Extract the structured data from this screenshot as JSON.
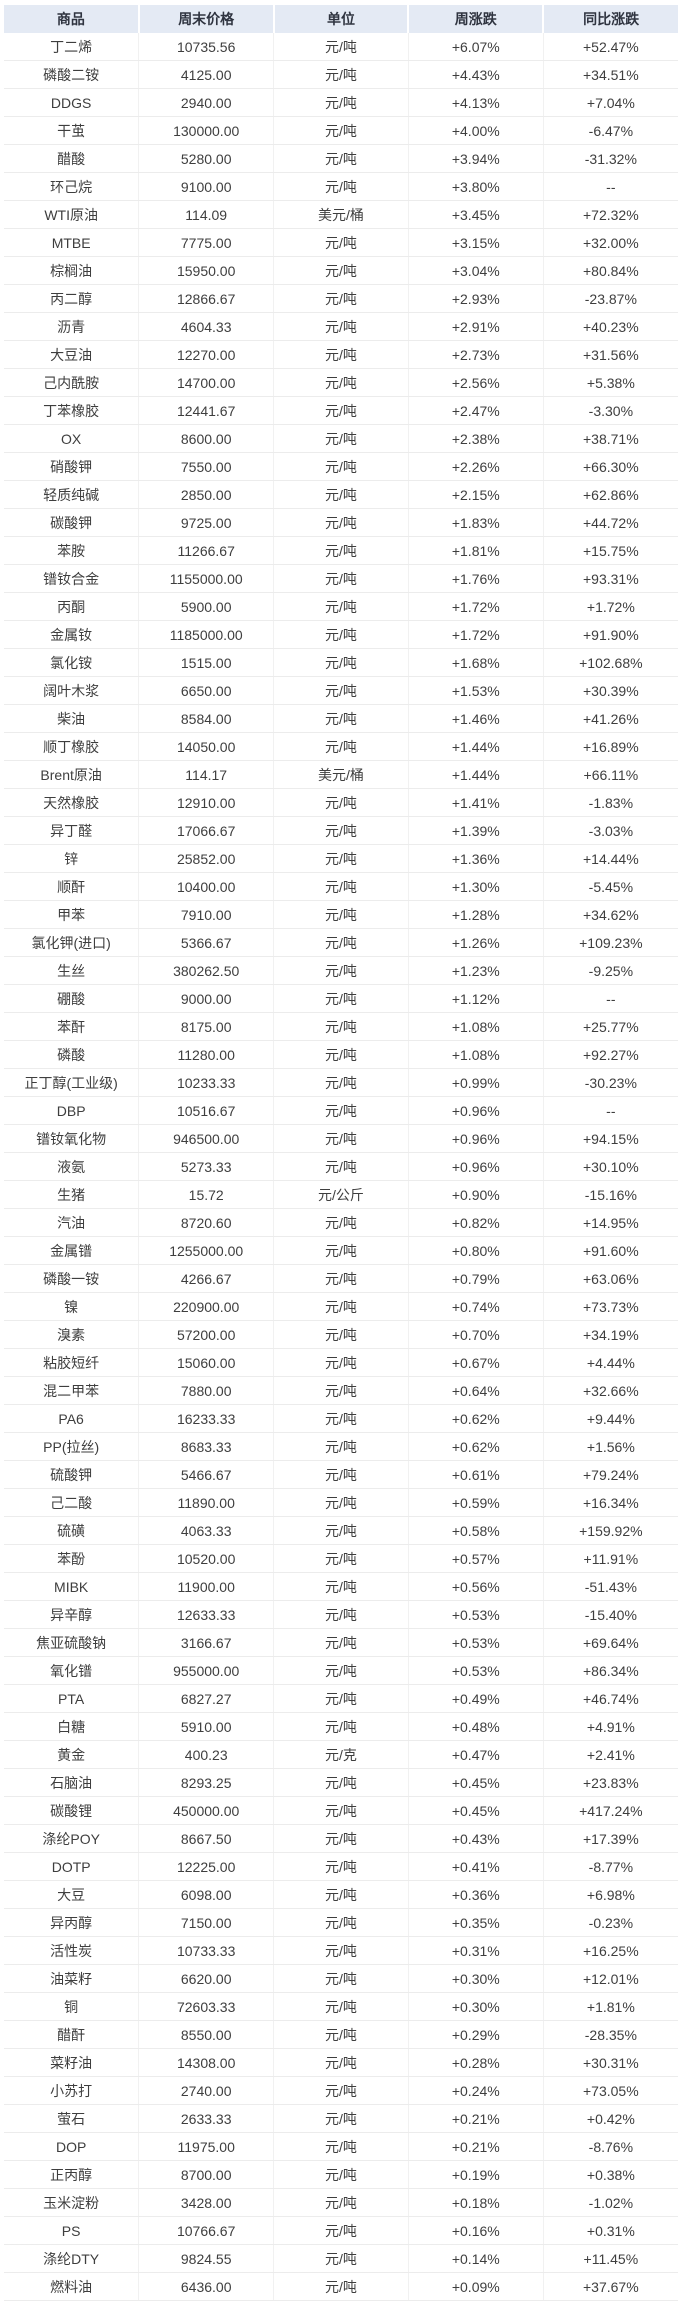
{
  "colors": {
    "header_bg": "#e4eaf4",
    "header_text": "#2f3440",
    "body_text": "#3e3e3e",
    "up": "#ff0000",
    "down": "#0b8a4b"
  },
  "chart_data": {
    "type": "table",
    "columns": [
      "商品",
      "周末价格",
      "单位",
      "周涨跌",
      "同比涨跌"
    ],
    "rows": [
      [
        "丁二烯",
        "10735.56",
        "元/吨",
        "+6.07%",
        "+52.47%"
      ],
      [
        "磷酸二铵",
        "4125.00",
        "元/吨",
        "+4.43%",
        "+34.51%"
      ],
      [
        "DDGS",
        "2940.00",
        "元/吨",
        "+4.13%",
        "+7.04%"
      ],
      [
        "干茧",
        "130000.00",
        "元/吨",
        "+4.00%",
        "-6.47%"
      ],
      [
        "醋酸",
        "5280.00",
        "元/吨",
        "+3.94%",
        "-31.32%"
      ],
      [
        "环己烷",
        "9100.00",
        "元/吨",
        "+3.80%",
        "--"
      ],
      [
        "WTI原油",
        "114.09",
        "美元/桶",
        "+3.45%",
        "+72.32%"
      ],
      [
        "MTBE",
        "7775.00",
        "元/吨",
        "+3.15%",
        "+32.00%"
      ],
      [
        "棕榈油",
        "15950.00",
        "元/吨",
        "+3.04%",
        "+80.84%"
      ],
      [
        "丙二醇",
        "12866.67",
        "元/吨",
        "+2.93%",
        "-23.87%"
      ],
      [
        "沥青",
        "4604.33",
        "元/吨",
        "+2.91%",
        "+40.23%"
      ],
      [
        "大豆油",
        "12270.00",
        "元/吨",
        "+2.73%",
        "+31.56%"
      ],
      [
        "己内酰胺",
        "14700.00",
        "元/吨",
        "+2.56%",
        "+5.38%"
      ],
      [
        "丁苯橡胶",
        "12441.67",
        "元/吨",
        "+2.47%",
        "-3.30%"
      ],
      [
        "OX",
        "8600.00",
        "元/吨",
        "+2.38%",
        "+38.71%"
      ],
      [
        "硝酸钾",
        "7550.00",
        "元/吨",
        "+2.26%",
        "+66.30%"
      ],
      [
        "轻质纯碱",
        "2850.00",
        "元/吨",
        "+2.15%",
        "+62.86%"
      ],
      [
        "碳酸钾",
        "9725.00",
        "元/吨",
        "+1.83%",
        "+44.72%"
      ],
      [
        "苯胺",
        "11266.67",
        "元/吨",
        "+1.81%",
        "+15.75%"
      ],
      [
        "镨钕合金",
        "1155000.00",
        "元/吨",
        "+1.76%",
        "+93.31%"
      ],
      [
        "丙酮",
        "5900.00",
        "元/吨",
        "+1.72%",
        "+1.72%"
      ],
      [
        "金属钕",
        "1185000.00",
        "元/吨",
        "+1.72%",
        "+91.90%"
      ],
      [
        "氯化铵",
        "1515.00",
        "元/吨",
        "+1.68%",
        "+102.68%"
      ],
      [
        "阔叶木浆",
        "6650.00",
        "元/吨",
        "+1.53%",
        "+30.39%"
      ],
      [
        "柴油",
        "8584.00",
        "元/吨",
        "+1.46%",
        "+41.26%"
      ],
      [
        "顺丁橡胶",
        "14050.00",
        "元/吨",
        "+1.44%",
        "+16.89%"
      ],
      [
        "Brent原油",
        "114.17",
        "美元/桶",
        "+1.44%",
        "+66.11%"
      ],
      [
        "天然橡胶",
        "12910.00",
        "元/吨",
        "+1.41%",
        "-1.83%"
      ],
      [
        "异丁醛",
        "17066.67",
        "元/吨",
        "+1.39%",
        "-3.03%"
      ],
      [
        "锌",
        "25852.00",
        "元/吨",
        "+1.36%",
        "+14.44%"
      ],
      [
        "顺酐",
        "10400.00",
        "元/吨",
        "+1.30%",
        "-5.45%"
      ],
      [
        "甲苯",
        "7910.00",
        "元/吨",
        "+1.28%",
        "+34.62%"
      ],
      [
        "氯化钾(进口)",
        "5366.67",
        "元/吨",
        "+1.26%",
        "+109.23%"
      ],
      [
        "生丝",
        "380262.50",
        "元/吨",
        "+1.23%",
        "-9.25%"
      ],
      [
        "硼酸",
        "9000.00",
        "元/吨",
        "+1.12%",
        "--"
      ],
      [
        "苯酐",
        "8175.00",
        "元/吨",
        "+1.08%",
        "+25.77%"
      ],
      [
        "磷酸",
        "11280.00",
        "元/吨",
        "+1.08%",
        "+92.27%"
      ],
      [
        "正丁醇(工业级)",
        "10233.33",
        "元/吨",
        "+0.99%",
        "-30.23%"
      ],
      [
        "DBP",
        "10516.67",
        "元/吨",
        "+0.96%",
        "--"
      ],
      [
        "镨钕氧化物",
        "946500.00",
        "元/吨",
        "+0.96%",
        "+94.15%"
      ],
      [
        "液氨",
        "5273.33",
        "元/吨",
        "+0.96%",
        "+30.10%"
      ],
      [
        "生猪",
        "15.72",
        "元/公斤",
        "+0.90%",
        "-15.16%"
      ],
      [
        "汽油",
        "8720.60",
        "元/吨",
        "+0.82%",
        "+14.95%"
      ],
      [
        "金属镨",
        "1255000.00",
        "元/吨",
        "+0.80%",
        "+91.60%"
      ],
      [
        "磷酸一铵",
        "4266.67",
        "元/吨",
        "+0.79%",
        "+63.06%"
      ],
      [
        "镍",
        "220900.00",
        "元/吨",
        "+0.74%",
        "+73.73%"
      ],
      [
        "溴素",
        "57200.00",
        "元/吨",
        "+0.70%",
        "+34.19%"
      ],
      [
        "粘胶短纤",
        "15060.00",
        "元/吨",
        "+0.67%",
        "+4.44%"
      ],
      [
        "混二甲苯",
        "7880.00",
        "元/吨",
        "+0.64%",
        "+32.66%"
      ],
      [
        "PA6",
        "16233.33",
        "元/吨",
        "+0.62%",
        "+9.44%"
      ],
      [
        "PP(拉丝)",
        "8683.33",
        "元/吨",
        "+0.62%",
        "+1.56%"
      ],
      [
        "硫酸钾",
        "5466.67",
        "元/吨",
        "+0.61%",
        "+79.24%"
      ],
      [
        "己二酸",
        "11890.00",
        "元/吨",
        "+0.59%",
        "+16.34%"
      ],
      [
        "硫磺",
        "4063.33",
        "元/吨",
        "+0.58%",
        "+159.92%"
      ],
      [
        "苯酚",
        "10520.00",
        "元/吨",
        "+0.57%",
        "+11.91%"
      ],
      [
        "MIBK",
        "11900.00",
        "元/吨",
        "+0.56%",
        "-51.43%"
      ],
      [
        "异辛醇",
        "12633.33",
        "元/吨",
        "+0.53%",
        "-15.40%"
      ],
      [
        "焦亚硫酸钠",
        "3166.67",
        "元/吨",
        "+0.53%",
        "+69.64%"
      ],
      [
        "氧化镨",
        "955000.00",
        "元/吨",
        "+0.53%",
        "+86.34%"
      ],
      [
        "PTA",
        "6827.27",
        "元/吨",
        "+0.49%",
        "+46.74%"
      ],
      [
        "白糖",
        "5910.00",
        "元/吨",
        "+0.48%",
        "+4.91%"
      ],
      [
        "黄金",
        "400.23",
        "元/克",
        "+0.47%",
        "+2.41%"
      ],
      [
        "石脑油",
        "8293.25",
        "元/吨",
        "+0.45%",
        "+23.83%"
      ],
      [
        "碳酸锂",
        "450000.00",
        "元/吨",
        "+0.45%",
        "+417.24%"
      ],
      [
        "涤纶POY",
        "8667.50",
        "元/吨",
        "+0.43%",
        "+17.39%"
      ],
      [
        "DOTP",
        "12225.00",
        "元/吨",
        "+0.41%",
        "-8.77%"
      ],
      [
        "大豆",
        "6098.00",
        "元/吨",
        "+0.36%",
        "+6.98%"
      ],
      [
        "异丙醇",
        "7150.00",
        "元/吨",
        "+0.35%",
        "-0.23%"
      ],
      [
        "活性炭",
        "10733.33",
        "元/吨",
        "+0.31%",
        "+16.25%"
      ],
      [
        "油菜籽",
        "6620.00",
        "元/吨",
        "+0.30%",
        "+12.01%"
      ],
      [
        "铜",
        "72603.33",
        "元/吨",
        "+0.30%",
        "+1.81%"
      ],
      [
        "醋酐",
        "8550.00",
        "元/吨",
        "+0.29%",
        "-28.35%"
      ],
      [
        "菜籽油",
        "14308.00",
        "元/吨",
        "+0.28%",
        "+30.31%"
      ],
      [
        "小苏打",
        "2740.00",
        "元/吨",
        "+0.24%",
        "+73.05%"
      ],
      [
        "萤石",
        "2633.33",
        "元/吨",
        "+0.21%",
        "+0.42%"
      ],
      [
        "DOP",
        "11975.00",
        "元/吨",
        "+0.21%",
        "-8.76%"
      ],
      [
        "正丙醇",
        "8700.00",
        "元/吨",
        "+0.19%",
        "+0.38%"
      ],
      [
        "玉米淀粉",
        "3428.00",
        "元/吨",
        "+0.18%",
        "-1.02%"
      ],
      [
        "PS",
        "10766.67",
        "元/吨",
        "+0.16%",
        "+0.31%"
      ],
      [
        "涤纶DTY",
        "9824.55",
        "元/吨",
        "+0.14%",
        "+11.45%"
      ],
      [
        "燃料油",
        "6436.00",
        "元/吨",
        "+0.09%",
        "+37.67%"
      ]
    ]
  }
}
